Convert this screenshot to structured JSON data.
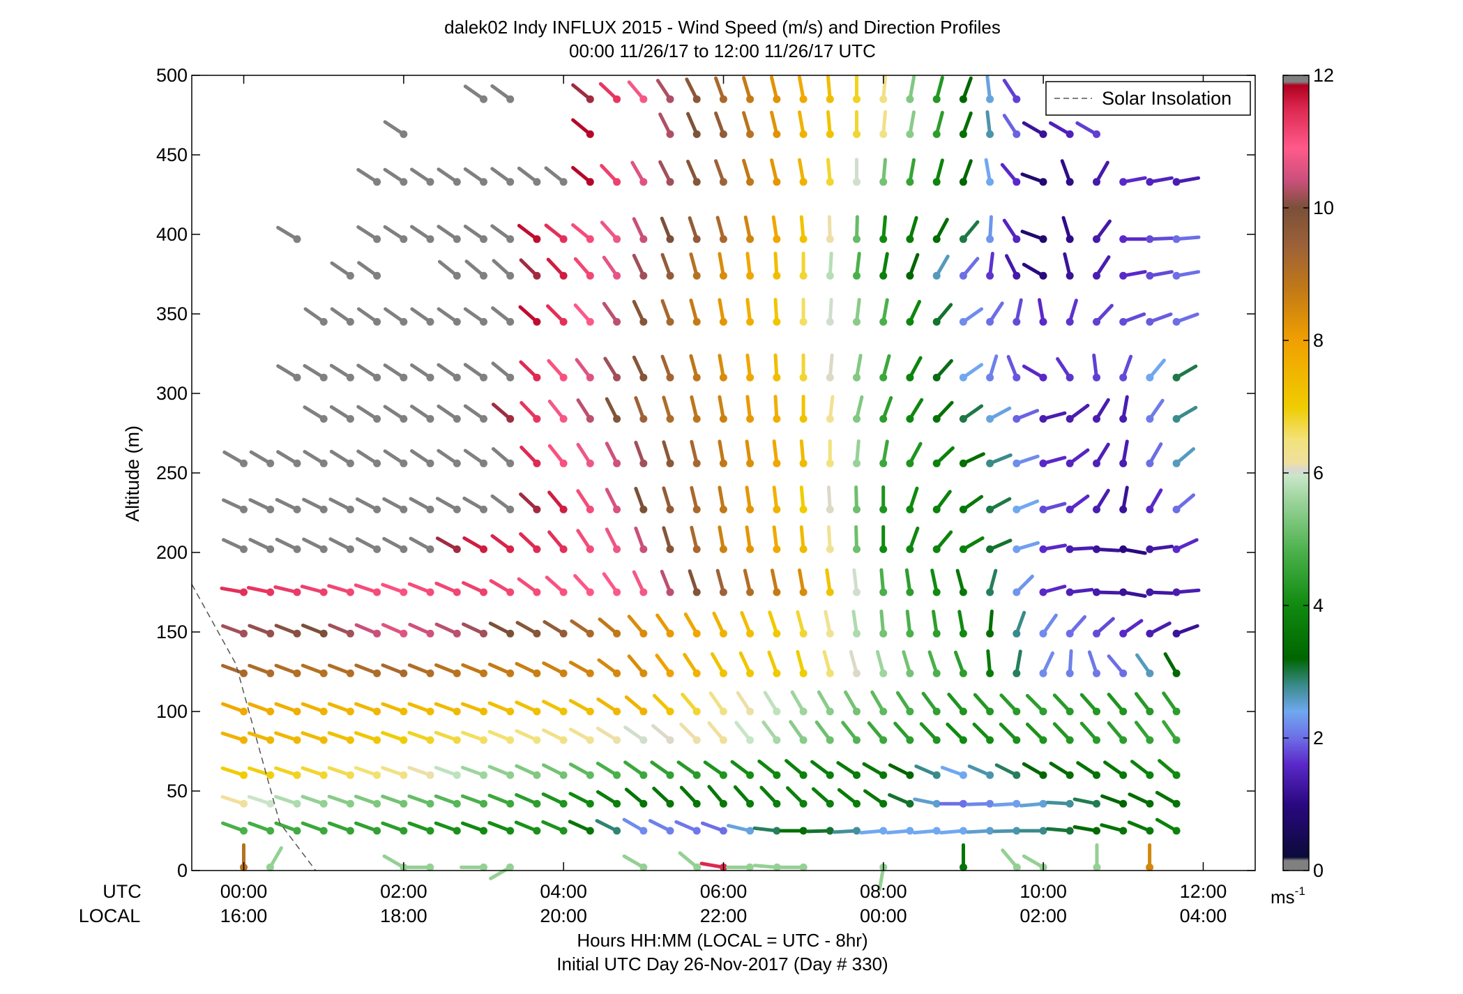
{
  "chart_data": {
    "type": "wind-barb-profile",
    "title": "dalek02 Indy INFLUX 2015 - Wind Speed (m/s) and Direction Profiles",
    "subtitle": "00:00 11/26/17 to 12:00 11/26/17  UTC",
    "ylabel": "Altitude (m)",
    "xlabel": "Hours HH:MM  (LOCAL = UTC - 8hr)",
    "xlabel2": "Initial UTC Day 26-Nov-2017 (Day # 330)",
    "row_label_utc": "UTC",
    "row_label_local": "LOCAL",
    "xlim": [
      -0.65,
      12.65
    ],
    "ylim": [
      0,
      500
    ],
    "x_ticks": [
      0,
      2,
      4,
      6,
      8,
      10,
      12
    ],
    "x_ticklabels_utc": [
      "00:00",
      "02:00",
      "04:00",
      "06:00",
      "08:00",
      "10:00",
      "12:00"
    ],
    "x_ticklabels_local": [
      "16:00",
      "18:00",
      "20:00",
      "22:00",
      "00:00",
      "02:00",
      "04:00"
    ],
    "y_ticks": [
      0,
      50,
      100,
      150,
      200,
      250,
      300,
      350,
      400,
      450,
      500
    ],
    "y_ticklabels": [
      "0",
      "50",
      "100",
      "150",
      "200",
      "250",
      "300",
      "350",
      "400",
      "450",
      "500"
    ],
    "altitudes": [
      25,
      42,
      60,
      82,
      100,
      124,
      149,
      175,
      202,
      227,
      256,
      284,
      310,
      345,
      374,
      397,
      433,
      463,
      485
    ],
    "time_step_hours": 0.3333,
    "n_times": 36,
    "row_first_index": [
      0,
      0,
      0,
      0,
      0,
      0,
      0,
      0,
      0,
      0,
      0,
      3,
      2,
      3,
      4,
      2,
      5,
      6,
      9
    ],
    "row_last_index": [
      35,
      35,
      35,
      35,
      35,
      35,
      35,
      35,
      35,
      35,
      35,
      35,
      35,
      35,
      35,
      35,
      35,
      32,
      29
    ],
    "row_missing": [
      [],
      [],
      [],
      [],
      [],
      [],
      [],
      [],
      [],
      [],
      [],
      [],
      [],
      [],
      [
        6,
        7
      ],
      [
        3,
        4
      ],
      [],
      [
        7,
        8,
        9,
        10,
        11,
        12,
        14,
        15
      ],
      [
        11,
        12
      ]
    ],
    "speed_keyframes_hours": [
      0,
      1,
      2,
      3,
      4,
      5,
      6,
      7,
      8,
      9,
      10,
      11,
      11.67
    ],
    "speed_keyframes_ms": [
      [
        4.8,
        4.6,
        4.4,
        4.0,
        4.2,
        2.2,
        2.0,
        3.4,
        2.4,
        2.4,
        2.8,
        3.5,
        3.8
      ],
      [
        6.2,
        5.5,
        5.2,
        4.8,
        4.2,
        3.5,
        3.6,
        3.8,
        3.6,
        2.0,
        2.5,
        3.2,
        3.5
      ],
      [
        7.0,
        6.8,
        6.4,
        5.6,
        5.2,
        4.6,
        4.2,
        3.8,
        3.6,
        2.4,
        3.2,
        3.6,
        4.0
      ],
      [
        7.6,
        7.4,
        7.0,
        6.6,
        6.4,
        6.0,
        6.2,
        5.4,
        4.6,
        4.0,
        4.2,
        4.4,
        4.6
      ],
      [
        7.8,
        7.6,
        7.4,
        7.4,
        7.2,
        7.6,
        6.4,
        5.6,
        5.0,
        4.2,
        4.4,
        4.2,
        4.4
      ],
      [
        9.2,
        9.0,
        9.2,
        8.8,
        8.6,
        8.4,
        7.2,
        7.0,
        5.6,
        4.4,
        2.2,
        2.0,
        3.2
      ],
      [
        10.2,
        10.0,
        10.6,
        10.2,
        9.6,
        8.4,
        7.6,
        6.8,
        5.2,
        4.0,
        2.2,
        1.6,
        1.2
      ],
      [
        11.4,
        11.2,
        11.0,
        11.2,
        11.0,
        10.8,
        9.4,
        8.4,
        4.8,
        3.6,
        1.6,
        1.2,
        1.4
      ],
      [
        12.4,
        12.4,
        12.4,
        11.6,
        11.4,
        10.4,
        8.6,
        7.4,
        4.0,
        3.8,
        1.6,
        1.0,
        1.6
      ],
      [
        12.4,
        12.4,
        12.4,
        12.4,
        11.6,
        10.0,
        8.8,
        7.0,
        4.2,
        3.6,
        1.8,
        1.2,
        2.0
      ],
      [
        12.4,
        12.4,
        12.4,
        12.4,
        11.0,
        10.2,
        8.8,
        7.4,
        4.6,
        3.4,
        1.6,
        1.4,
        2.6
      ],
      [
        12.4,
        12.4,
        12.4,
        12.4,
        10.8,
        9.4,
        8.6,
        7.2,
        4.4,
        3.0,
        1.4,
        1.4,
        2.8
      ],
      [
        12.4,
        12.4,
        12.4,
        12.4,
        11.0,
        9.8,
        8.4,
        6.8,
        4.6,
        2.4,
        1.6,
        1.8,
        3.0
      ],
      [
        12.4,
        12.4,
        12.4,
        12.4,
        11.4,
        9.8,
        8.2,
        6.6,
        4.8,
        2.2,
        1.6,
        1.8,
        2.0
      ],
      [
        12.4,
        12.4,
        12.4,
        12.4,
        11.6,
        10.2,
        8.4,
        6.8,
        3.8,
        2.0,
        1.0,
        1.6,
        2.0
      ],
      [
        12.4,
        12.4,
        12.4,
        12.4,
        11.4,
        10.4,
        9.2,
        7.2,
        4.0,
        3.0,
        0.8,
        1.6,
        2.0
      ],
      [
        12.4,
        12.4,
        12.4,
        12.4,
        12.4,
        10.6,
        9.4,
        7.6,
        5.2,
        3.2,
        0.8,
        1.6,
        1.4
      ],
      [
        12.4,
        12.4,
        12.4,
        12.4,
        12.4,
        10.6,
        9.6,
        7.6,
        6.4,
        3.4,
        1.2,
        2.0,
        2.0
      ],
      [
        12.4,
        12.4,
        12.4,
        12.4,
        12.4,
        10.8,
        9.2,
        7.8,
        6.4,
        3.2,
        1.0,
        2.0,
        2.0
      ]
    ],
    "direction_keyframes_hours": [
      0,
      3,
      4.5,
      5,
      6,
      7,
      8,
      9,
      10,
      11,
      11.67
    ],
    "direction_keyframes_deg": [
      [
        290,
        290,
        295,
        300,
        290,
        270,
        265,
        265,
        270,
        285,
        300
      ],
      [
        288,
        290,
        298,
        310,
        320,
        315,
        305,
        270,
        265,
        290,
        300
      ],
      [
        288,
        290,
        300,
        305,
        305,
        310,
        300,
        290,
        300,
        305,
        310
      ],
      [
        288,
        290,
        300,
        305,
        320,
        325,
        320,
        315,
        315,
        320,
        325
      ],
      [
        290,
        290,
        300,
        310,
        325,
        330,
        330,
        320,
        315,
        320,
        325
      ],
      [
        290,
        292,
        300,
        320,
        330,
        345,
        345,
        340,
        25,
        320,
        330
      ],
      [
        290,
        295,
        305,
        320,
        335,
        345,
        355,
        350,
        35,
        55,
        70
      ],
      [
        280,
        295,
        320,
        335,
        345,
        350,
        355,
        345,
        75,
        100,
        85
      ],
      [
        295,
        300,
        330,
        340,
        350,
        355,
        0,
        60,
        80,
        100,
        65
      ],
      [
        295,
        300,
        330,
        340,
        350,
        355,
        0,
        55,
        75,
        10,
        50
      ],
      [
        300,
        305,
        330,
        340,
        350,
        355,
        10,
        65,
        75,
        10,
        50
      ],
      [
        300,
        305,
        330,
        340,
        350,
        0,
        20,
        55,
        75,
        10,
        60
      ],
      [
        300,
        305,
        325,
        335,
        350,
        0,
        15,
        55,
        300,
        20,
        60
      ],
      [
        305,
        305,
        320,
        335,
        350,
        0,
        10,
        55,
        350,
        70,
        70
      ],
      [
        300,
        310,
        320,
        335,
        350,
        0,
        10,
        40,
        300,
        80,
        80
      ],
      [
        300,
        305,
        310,
        335,
        345,
        355,
        5,
        40,
        290,
        90,
        85
      ],
      [
        300,
        305,
        310,
        330,
        340,
        350,
        5,
        20,
        290,
        80,
        80
      ],
      [
        300,
        305,
        310,
        330,
        340,
        350,
        5,
        20,
        300,
        300,
        300
      ],
      [
        305,
        305,
        310,
        320,
        340,
        350,
        5,
        20,
        300,
        300,
        300
      ]
    ],
    "near_surface": {
      "altitude": 2,
      "points": [
        {
          "t": 0.0,
          "speed": 9.0,
          "dir": 0
        },
        {
          "t": 0.33,
          "speed": 5.5,
          "dir": 30
        },
        {
          "t": 2.0,
          "speed": 5.5,
          "dir": 300
        },
        {
          "t": 2.33,
          "speed": 5.5,
          "dir": 270
        },
        {
          "t": 3.0,
          "speed": 5.5,
          "dir": 270
        },
        {
          "t": 3.33,
          "speed": 5.5,
          "dir": 240
        },
        {
          "t": 5.0,
          "speed": 5.5,
          "dir": 300
        },
        {
          "t": 5.67,
          "speed": 5.5,
          "dir": 310
        },
        {
          "t": 6.0,
          "speed": 11.5,
          "dir": 280
        },
        {
          "t": 6.33,
          "speed": 5.5,
          "dir": 270
        },
        {
          "t": 6.67,
          "speed": 5.5,
          "dir": 275
        },
        {
          "t": 7.0,
          "speed": 5.5,
          "dir": 270
        },
        {
          "t": 8.0,
          "speed": 5.5,
          "dir": 190
        },
        {
          "t": 9.0,
          "speed": 3.5,
          "dir": 0
        },
        {
          "t": 9.67,
          "speed": 5.5,
          "dir": 320
        },
        {
          "t": 10.0,
          "speed": 5.5,
          "dir": 300
        },
        {
          "t": 10.67,
          "speed": 5.5,
          "dir": 0
        },
        {
          "t": 11.33,
          "speed": 8.5,
          "dir": 0
        }
      ]
    },
    "solar_insolation_line": {
      "hours": [
        -0.65,
        -0.1,
        0.45,
        0.9
      ],
      "altitudes": [
        180,
        130,
        30,
        0
      ]
    },
    "legend": {
      "label": "Solar Insolation",
      "location": "top-right"
    },
    "colorbar": {
      "min": 0,
      "max": 12,
      "ticks": [
        0,
        2,
        4,
        6,
        8,
        10,
        12
      ],
      "ticklabels": [
        "0",
        "2",
        "4",
        "6",
        "8",
        "10",
        "12"
      ],
      "unit_label": "ms",
      "unit_exponent": "-1",
      "stops": [
        {
          "v": 0.0,
          "c": "#808080"
        },
        {
          "v": 0.15,
          "c": "#808080"
        },
        {
          "v": 0.2,
          "c": "#0b0b3a"
        },
        {
          "v": 1.0,
          "c": "#2a0880"
        },
        {
          "v": 1.6,
          "c": "#5a28c8"
        },
        {
          "v": 2.0,
          "c": "#6d6ee6"
        },
        {
          "v": 2.4,
          "c": "#70a8f0"
        },
        {
          "v": 2.8,
          "c": "#3a8a8a"
        },
        {
          "v": 3.2,
          "c": "#006600"
        },
        {
          "v": 4.0,
          "c": "#108a10"
        },
        {
          "v": 4.8,
          "c": "#4ab04a"
        },
        {
          "v": 5.6,
          "c": "#9ed49e"
        },
        {
          "v": 5.95,
          "c": "#c8e6c8"
        },
        {
          "v": 6.05,
          "c": "#d8d8d0"
        },
        {
          "v": 6.15,
          "c": "#f0e0a0"
        },
        {
          "v": 6.5,
          "c": "#f2e27a"
        },
        {
          "v": 7.0,
          "c": "#f0cc00"
        },
        {
          "v": 8.0,
          "c": "#f0a000"
        },
        {
          "v": 8.8,
          "c": "#c07818"
        },
        {
          "v": 9.4,
          "c": "#9e6238"
        },
        {
          "v": 10.0,
          "c": "#7a5038"
        },
        {
          "v": 10.4,
          "c": "#c8507a"
        },
        {
          "v": 10.9,
          "c": "#ff5a8a"
        },
        {
          "v": 11.5,
          "c": "#dc2850"
        },
        {
          "v": 11.85,
          "c": "#b00020"
        },
        {
          "v": 11.9,
          "c": "#808080"
        },
        {
          "v": 12.0,
          "c": "#808080"
        }
      ]
    },
    "axis_color": "#000000",
    "missing_color": "#808080"
  }
}
